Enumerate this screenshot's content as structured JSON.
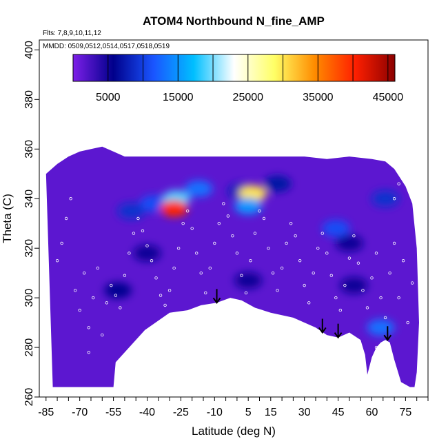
{
  "chart_data": {
    "type": "heatmap",
    "title": "ATOM4 Northbound N_fine_AMP",
    "subtitle_flights": "Flts: 7,8,9,10,11,12",
    "subtitle_dates": "MMDD: 0509,0512,0514,0517,0518,0519",
    "xlabel": "Latitude (deg N)",
    "ylabel": "Theta (C)",
    "xlim": [
      -88,
      85
    ],
    "ylim": [
      260,
      404
    ],
    "x_ticks": [
      -85,
      -70,
      -55,
      -40,
      -25,
      -10,
      5,
      15,
      30,
      45,
      60,
      75
    ],
    "y_ticks": [
      260,
      280,
      300,
      320,
      340,
      360,
      380,
      400
    ],
    "colorbar": {
      "range": [
        0,
        46000
      ],
      "ticks": [
        5000,
        15000,
        25000,
        35000,
        45000
      ],
      "colors": [
        "#7d1fe8",
        "#00008b",
        "#1a55ff",
        "#00bfff",
        "#ffffff",
        "#ffff66",
        "#ff8c00",
        "#ff2000",
        "#8b0000"
      ]
    },
    "background_value": 1500,
    "field_highlights": [
      {
        "lat": -47,
        "theta": 335,
        "value": 9000
      },
      {
        "lat": -37,
        "theta": 338,
        "value": 11000
      },
      {
        "lat": -27,
        "theta": 340,
        "value": 19000
      },
      {
        "lat": -28,
        "theta": 336,
        "value": 40000
      },
      {
        "lat": -17,
        "theta": 344,
        "value": 13000
      },
      {
        "lat": 2,
        "theta": 343,
        "value": 8000
      },
      {
        "lat": 7,
        "theta": 342,
        "value": 30000
      },
      {
        "lat": 5,
        "theta": 337,
        "value": 15000
      },
      {
        "lat": 18,
        "theta": 346,
        "value": 7000
      },
      {
        "lat": 44,
        "theta": 328,
        "value": 11000
      },
      {
        "lat": 50,
        "theta": 322,
        "value": 5000
      },
      {
        "lat": -53,
        "theta": 303,
        "value": 6000
      },
      {
        "lat": 5,
        "theta": 307,
        "value": 5000
      },
      {
        "lat": 52,
        "theta": 305,
        "value": 5000
      },
      {
        "lat": 64,
        "theta": 288,
        "value": 13000
      },
      {
        "lat": 66,
        "theta": 340,
        "value": 9000
      },
      {
        "lat": -40,
        "theta": 318,
        "value": 5000
      }
    ],
    "arrows": [
      {
        "lat": -9,
        "theta": 298
      },
      {
        "lat": 38,
        "theta": 286
      },
      {
        "lat": 45,
        "theta": 284
      },
      {
        "lat": 67,
        "theta": 283
      }
    ],
    "coverage_top": [
      [
        -85,
        350
      ],
      [
        -80,
        354
      ],
      [
        -75,
        357
      ],
      [
        -70,
        359
      ],
      [
        -65,
        360
      ],
      [
        -60,
        361
      ],
      [
        -55,
        359
      ],
      [
        -50,
        357
      ],
      [
        -40,
        357
      ],
      [
        -30,
        357
      ],
      [
        -20,
        357
      ],
      [
        -10,
        357
      ],
      [
        0,
        357
      ],
      [
        10,
        357
      ],
      [
        20,
        357
      ],
      [
        30,
        357
      ],
      [
        40,
        356
      ],
      [
        50,
        357
      ],
      [
        60,
        356
      ],
      [
        66,
        355
      ],
      [
        70,
        352
      ],
      [
        75,
        345
      ],
      [
        78,
        338
      ],
      [
        80,
        320
      ],
      [
        81,
        290
      ],
      [
        80,
        270
      ],
      [
        79,
        264
      ]
    ],
    "coverage_bottom": [
      [
        -82,
        264
      ],
      [
        -70,
        264
      ],
      [
        -55,
        264
      ],
      [
        -54,
        274
      ],
      [
        -41,
        287
      ],
      [
        -30,
        294
      ],
      [
        -22,
        295
      ],
      [
        -16,
        297
      ],
      [
        -9,
        298
      ],
      [
        -3,
        300
      ],
      [
        2,
        299
      ],
      [
        8,
        296
      ],
      [
        15,
        294
      ],
      [
        25,
        292
      ],
      [
        35,
        288
      ],
      [
        40,
        285
      ],
      [
        45,
        284
      ],
      [
        50,
        286
      ],
      [
        55,
        283
      ],
      [
        57,
        277
      ],
      [
        58,
        269
      ],
      [
        60,
        276
      ],
      [
        62,
        280
      ],
      [
        64,
        282
      ],
      [
        66,
        283
      ],
      [
        68,
        282
      ],
      [
        70,
        275
      ],
      [
        73,
        266
      ],
      [
        77,
        264
      ]
    ],
    "points": [
      [
        -80,
        315
      ],
      [
        -78,
        322
      ],
      [
        -76,
        332
      ],
      [
        -74,
        340
      ],
      [
        -72,
        303
      ],
      [
        -70,
        295
      ],
      [
        -68,
        310
      ],
      [
        -66,
        288
      ],
      [
        -64,
        300
      ],
      [
        -62,
        312
      ],
      [
        -60,
        285
      ],
      [
        -58,
        298
      ],
      [
        -56,
        305
      ],
      [
        -54,
        301
      ],
      [
        -52,
        296
      ],
      [
        -50,
        309
      ],
      [
        -48,
        318
      ],
      [
        -46,
        326
      ],
      [
        -44,
        332
      ],
      [
        -42,
        327
      ],
      [
        -40,
        321
      ],
      [
        -38,
        315
      ],
      [
        -36,
        308
      ],
      [
        -34,
        301
      ],
      [
        -32,
        297
      ],
      [
        -30,
        303
      ],
      [
        -28,
        312
      ],
      [
        -26,
        320
      ],
      [
        -24,
        330
      ],
      [
        -22,
        335
      ],
      [
        -20,
        328
      ],
      [
        -18,
        318
      ],
      [
        -16,
        310
      ],
      [
        -14,
        302
      ],
      [
        -12,
        312
      ],
      [
        -10,
        322
      ],
      [
        -8,
        330
      ],
      [
        -6,
        338
      ],
      [
        -4,
        333
      ],
      [
        -2,
        325
      ],
      [
        0,
        318
      ],
      [
        2,
        309
      ],
      [
        4,
        302
      ],
      [
        6,
        315
      ],
      [
        8,
        326
      ],
      [
        10,
        335
      ],
      [
        12,
        332
      ],
      [
        14,
        320
      ],
      [
        16,
        310
      ],
      [
        18,
        303
      ],
      [
        20,
        312
      ],
      [
        22,
        322
      ],
      [
        24,
        330
      ],
      [
        26,
        325
      ],
      [
        28,
        315
      ],
      [
        30,
        305
      ],
      [
        32,
        298
      ],
      [
        34,
        310
      ],
      [
        36,
        320
      ],
      [
        38,
        326
      ],
      [
        40,
        318
      ],
      [
        42,
        309
      ],
      [
        44,
        300
      ],
      [
        46,
        295
      ],
      [
        48,
        305
      ],
      [
        50,
        316
      ],
      [
        52,
        325
      ],
      [
        54,
        314
      ],
      [
        56,
        303
      ],
      [
        58,
        296
      ],
      [
        60,
        308
      ],
      [
        62,
        318
      ],
      [
        64,
        300
      ],
      [
        66,
        292
      ],
      [
        68,
        310
      ],
      [
        70,
        322
      ],
      [
        72,
        300
      ],
      [
        74,
        315
      ],
      [
        76,
        290
      ],
      [
        78,
        306
      ],
      [
        -66,
        278
      ],
      [
        70,
        340
      ],
      [
        72,
        346
      ],
      [
        62,
        280
      ],
      [
        -52,
        275
      ]
    ]
  }
}
